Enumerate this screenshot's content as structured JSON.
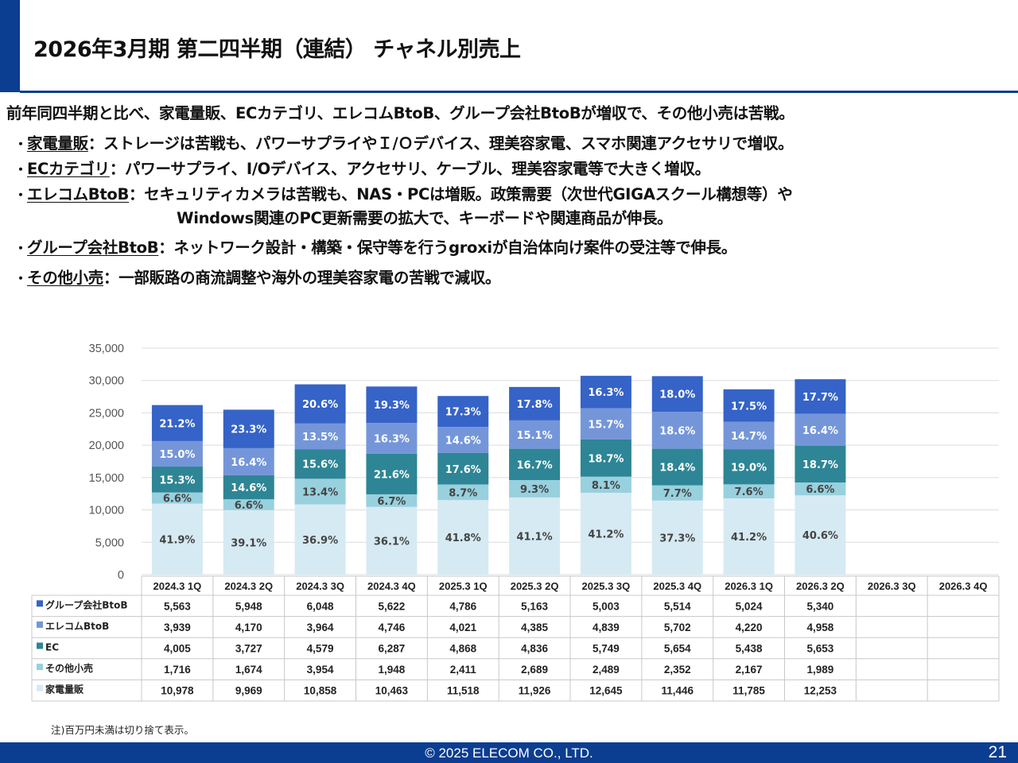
{
  "header": {
    "title": "2026年3月期 第二四半期（連結） チャネル別売上"
  },
  "summary": "前年同四半期と比べ、家電量販、ECカテゴリ、エレコムBtoB、グループ会社BtoBが増収で、その他小売は苦戦。",
  "bullets": [
    {
      "bullet": "・",
      "key": "家電量販",
      "text": "：ストレージは苦戦も、パワーサプライやＩ/Ｏデバイス、理美容家電、スマホ関連アクセサリで増収。",
      "cont": ""
    },
    {
      "bullet": "・",
      "key": "ECカテゴリ",
      "text": "：パワーサプライ、I/Oデバイス、アクセサリ、ケーブル、理美容家電等で大きく増収。",
      "cont": ""
    },
    {
      "bullet": "・",
      "key": "エレコムBtoB",
      "text": "：セキュリティカメラは苦戦も、NAS・PCは増販。政策需要（次世代GIGAスクール構想等）や",
      "cont": "Windows関連のPC更新需要の拡大で、キーボードや関連商品が伸長。"
    },
    {
      "bullet": "・",
      "key": "グループ会社BtoB",
      "text": "：ネットワーク設計・構築・保守等を行うgroxiが自治体向け案件の受注等で伸長。",
      "cont": ""
    },
    {
      "bullet": "・",
      "key": "その他小売",
      "text": "：一部販路の商流調整や海外の理美容家電の苦戦で減収。",
      "cont": ""
    }
  ],
  "chart_data": {
    "type": "bar",
    "stacked": true,
    "categories": [
      "2024.3 1Q",
      "2024.3 2Q",
      "2024.3 3Q",
      "2024.3 4Q",
      "2025.3 1Q",
      "2025.3 2Q",
      "2025.3 3Q",
      "2025.3 4Q",
      "2026.3 1Q",
      "2026.3 2Q",
      "2026.3 3Q",
      "2026.3 4Q"
    ],
    "ylim": [
      0,
      35000
    ],
    "yticks": [
      0,
      5000,
      10000,
      15000,
      20000,
      25000,
      30000,
      35000
    ],
    "ytick_labels": [
      "0",
      "5,000",
      "10,000",
      "15,000",
      "20,000",
      "25,000",
      "30,000",
      "35,000"
    ],
    "grid": true,
    "series": [
      {
        "name": "家電量販",
        "color": "#d6eaf3",
        "label_color": "#444444",
        "values": [
          10978,
          9969,
          10858,
          10463,
          11518,
          11926,
          12645,
          11446,
          11785,
          12253,
          null,
          null
        ],
        "value_labels": [
          "10,978",
          "9,969",
          "10,858",
          "10,463",
          "11,518",
          "11,926",
          "12,645",
          "11,446",
          "11,785",
          "12,253",
          "",
          ""
        ],
        "pct_labels": [
          "41.9%",
          "39.1%",
          "36.9%",
          "36.1%",
          "41.8%",
          "41.1%",
          "41.2%",
          "37.3%",
          "41.2%",
          "40.6%",
          "",
          ""
        ]
      },
      {
        "name": "その他小売",
        "color": "#98d0de",
        "label_color": "#444444",
        "values": [
          1716,
          1674,
          3954,
          1948,
          2411,
          2689,
          2489,
          2352,
          2167,
          1989,
          null,
          null
        ],
        "value_labels": [
          "1,716",
          "1,674",
          "3,954",
          "1,948",
          "2,411",
          "2,689",
          "2,489",
          "2,352",
          "2,167",
          "1,989",
          "",
          ""
        ],
        "pct_labels": [
          "6.6%",
          "6.6%",
          "13.4%",
          "6.7%",
          "8.7%",
          "9.3%",
          "8.1%",
          "7.7%",
          "7.6%",
          "6.6%",
          "",
          ""
        ]
      },
      {
        "name": "EC",
        "color": "#2e8595",
        "label_color": "#ffffff",
        "values": [
          4005,
          3727,
          4579,
          6287,
          4868,
          4836,
          5749,
          5654,
          5438,
          5653,
          null,
          null
        ],
        "value_labels": [
          "4,005",
          "3,727",
          "4,579",
          "6,287",
          "4,868",
          "4,836",
          "5,749",
          "5,654",
          "5,438",
          "5,653",
          "",
          ""
        ],
        "pct_labels": [
          "15.3%",
          "14.6%",
          "15.6%",
          "21.6%",
          "17.6%",
          "16.7%",
          "18.7%",
          "18.4%",
          "19.0%",
          "18.7%",
          "",
          ""
        ]
      },
      {
        "name": "エレコムBtoB",
        "color": "#7496d9",
        "label_color": "#ffffff",
        "values": [
          3939,
          4170,
          3964,
          4746,
          4021,
          4385,
          4839,
          5702,
          4220,
          4958,
          null,
          null
        ],
        "value_labels": [
          "3,939",
          "4,170",
          "3,964",
          "4,746",
          "4,021",
          "4,385",
          "4,839",
          "5,702",
          "4,220",
          "4,958",
          "",
          ""
        ],
        "pct_labels": [
          "15.0%",
          "16.4%",
          "13.5%",
          "16.3%",
          "14.6%",
          "15.1%",
          "15.7%",
          "18.6%",
          "14.7%",
          "16.4%",
          "",
          ""
        ]
      },
      {
        "name": "グループ会社BtoB",
        "color": "#3563c7",
        "label_color": "#ffffff",
        "values": [
          5563,
          5948,
          6048,
          5622,
          4786,
          5163,
          5003,
          5514,
          5024,
          5340,
          null,
          null
        ],
        "value_labels": [
          "5,563",
          "5,948",
          "6,048",
          "5,622",
          "4,786",
          "5,163",
          "5,003",
          "5,514",
          "5,024",
          "5,340",
          "",
          ""
        ],
        "pct_labels": [
          "21.2%",
          "23.3%",
          "20.6%",
          "19.3%",
          "17.3%",
          "17.8%",
          "16.3%",
          "18.0%",
          "17.5%",
          "17.7%",
          "",
          ""
        ]
      }
    ],
    "table_order": [
      "グループ会社BtoB",
      "エレコムBtoB",
      "EC",
      "その他小売",
      "家電量販"
    ]
  },
  "footer": {
    "note": "注)百万円未満は切り捨て表示。",
    "copyright": "© 2025 ELECOM CO., LTD.",
    "page": "21"
  }
}
